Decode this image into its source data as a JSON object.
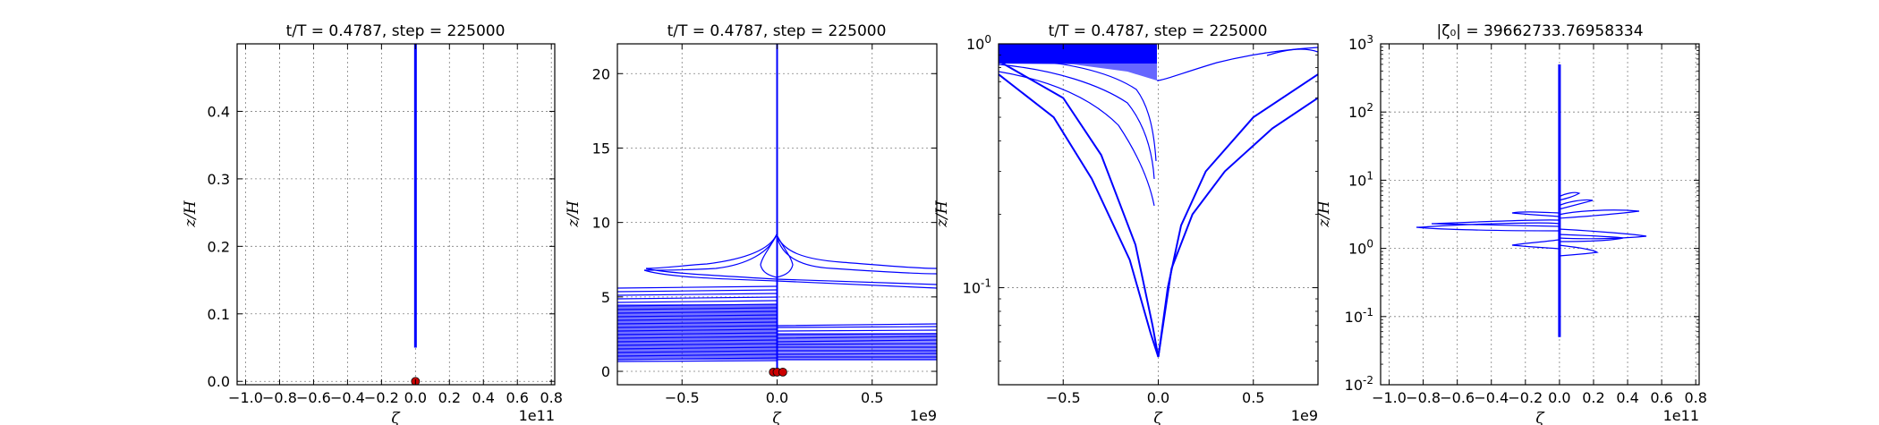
{
  "chart_data": [
    {
      "type": "line",
      "title": "t/T = 0.4787, step = 225000",
      "xlabel": "ζ",
      "ylabel": "z/H",
      "x_offset_label": "1e11",
      "yscale": "linear",
      "xlim": [
        -1.05,
        0.82
      ],
      "ylim": [
        -0.005,
        0.5
      ],
      "xticks": [
        -1.0,
        -0.8,
        -0.6,
        -0.4,
        -0.2,
        0.0,
        0.2,
        0.4,
        0.6,
        0.8
      ],
      "xtick_labels": [
        "−1.0",
        "−0.8",
        "−0.6",
        "−0.4",
        "−0.2",
        "0.0",
        "0.2",
        "0.4",
        "0.6",
        "0.8"
      ],
      "yticks": [
        0.0,
        0.1,
        0.2,
        0.3,
        0.4
      ],
      "ytick_labels": [
        "0.0",
        "0.1",
        "0.2",
        "0.3",
        "0.4"
      ],
      "grid": true,
      "line_color": "#0000ff",
      "marker_color": "#cc0000",
      "series": [
        {
          "x": [
            0.0,
            0.0
          ],
          "y": [
            0.05,
            0.5
          ]
        }
      ],
      "markers": [
        {
          "x": 0.0,
          "y": 0.0
        }
      ]
    },
    {
      "type": "line",
      "title": "t/T = 0.4787, step = 225000",
      "xlabel": "ζ",
      "ylabel": "z/H",
      "x_offset_label": "1e9",
      "yscale": "linear",
      "xlim": [
        -0.84,
        0.84
      ],
      "ylim": [
        -0.9,
        22
      ],
      "xticks": [
        -0.5,
        0.0,
        0.5
      ],
      "xtick_labels": [
        "−0.5",
        "0.0",
        "0.5"
      ],
      "yticks": [
        0,
        5,
        10,
        15,
        20
      ],
      "ytick_labels": [
        "0",
        "5",
        "10",
        "15",
        "20"
      ],
      "grid": true,
      "line_color": "#0000ff",
      "marker_color": "#cc0000",
      "series": [
        {
          "x": [
            0.0,
            0.0
          ],
          "y": [
            0.0,
            22
          ]
        }
      ],
      "markers": [
        {
          "x": -0.02,
          "y": -0.05
        },
        {
          "x": 0.0,
          "y": -0.05
        },
        {
          "x": 0.03,
          "y": -0.05
        }
      ]
    },
    {
      "type": "line",
      "title": "t/T = 0.4787, step = 225000",
      "xlabel": "ζ",
      "ylabel": "z/H",
      "x_offset_label": "1e9",
      "yscale": "log",
      "xlim": [
        -0.84,
        0.84
      ],
      "ylim": [
        0.04,
        1.0
      ],
      "xticks": [
        -0.5,
        0.0,
        0.5
      ],
      "xtick_labels": [
        "−0.5",
        "0.0",
        "0.5"
      ],
      "yticks": [
        0.1,
        1.0
      ],
      "ytick_labels": [
        {
          "base": "10",
          "exp": "-1"
        },
        {
          "base": "10",
          "exp": "0"
        }
      ],
      "grid": true,
      "line_color": "#0000ff",
      "series": [
        {
          "x": [
            -0.84,
            -0.5,
            -0.3,
            -0.12,
            -0.03,
            0.0
          ],
          "y": [
            0.85,
            0.6,
            0.35,
            0.15,
            0.07,
            0.052
          ]
        },
        {
          "x": [
            -0.84,
            -0.55,
            -0.35,
            -0.15,
            -0.04,
            0.0
          ],
          "y": [
            0.75,
            0.5,
            0.28,
            0.13,
            0.065,
            0.052
          ]
        },
        {
          "x": [
            0.0,
            0.05,
            0.12,
            0.25,
            0.5,
            0.84
          ],
          "y": [
            0.052,
            0.1,
            0.18,
            0.3,
            0.5,
            0.75
          ]
        },
        {
          "x": [
            0.0,
            0.07,
            0.18,
            0.35,
            0.6,
            0.84
          ],
          "y": [
            0.052,
            0.12,
            0.2,
            0.3,
            0.45,
            0.6
          ]
        }
      ]
    },
    {
      "type": "line",
      "title": "|ζ₀| = 39662733.76958334",
      "xlabel": "ζ",
      "ylabel": "z/H",
      "x_offset_label": "1e11",
      "yscale": "log",
      "xlim": [
        -1.05,
        0.82
      ],
      "ylim": [
        0.01,
        1000
      ],
      "xticks": [
        -1.0,
        -0.8,
        -0.6,
        -0.4,
        -0.2,
        0.0,
        0.2,
        0.4,
        0.6,
        0.8
      ],
      "xtick_labels": [
        "−1.0",
        "−0.8",
        "−0.6",
        "−0.4",
        "−0.2",
        "0.0",
        "0.2",
        "0.4",
        "0.6",
        "0.8"
      ],
      "yticks": [
        0.01,
        0.1,
        1,
        10,
        100,
        1000
      ],
      "ytick_labels": [
        {
          "base": "10",
          "exp": "-2"
        },
        {
          "base": "10",
          "exp": "-1"
        },
        {
          "base": "10",
          "exp": "0"
        },
        {
          "base": "10",
          "exp": "1"
        },
        {
          "base": "10",
          "exp": "2"
        },
        {
          "base": "10",
          "exp": "3"
        }
      ],
      "grid": true,
      "line_color": "#0000ff",
      "series": [
        {
          "x": [
            0.0,
            0.0
          ],
          "y": [
            0.05,
            500
          ]
        }
      ]
    }
  ]
}
